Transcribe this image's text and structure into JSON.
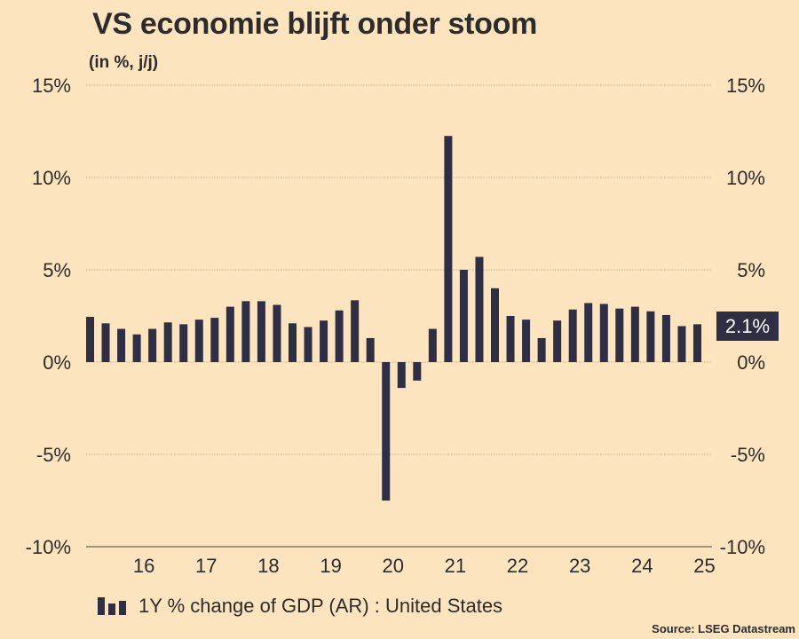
{
  "chart_data": {
    "type": "bar",
    "title": "VS economie blijft onder stoom",
    "subtitle": "(in %, j/j)",
    "xlabel": "",
    "ylabel": "",
    "ylim": [
      -10,
      15
    ],
    "yticks": [
      15,
      10,
      5,
      0,
      -5,
      -10
    ],
    "ytick_labels": [
      "15%",
      "10%",
      "5%",
      "0%",
      "-5%",
      "-10%"
    ],
    "xtick_labels": [
      "16",
      "17",
      "18",
      "19",
      "20",
      "21",
      "22",
      "23",
      "24",
      "25"
    ],
    "grid": true,
    "categories": [
      "2015Q2",
      "2015Q3",
      "2015Q4",
      "2016Q1",
      "2016Q2",
      "2016Q3",
      "2016Q4",
      "2017Q1",
      "2017Q2",
      "2017Q3",
      "2017Q4",
      "2018Q1",
      "2018Q2",
      "2018Q3",
      "2018Q4",
      "2019Q1",
      "2019Q2",
      "2019Q3",
      "2019Q4",
      "2020Q1",
      "2020Q2",
      "2020Q3",
      "2020Q4",
      "2021Q1",
      "2021Q2",
      "2021Q3",
      "2021Q4",
      "2022Q1",
      "2022Q2",
      "2022Q3",
      "2022Q4",
      "2023Q1",
      "2023Q2",
      "2023Q3",
      "2023Q4",
      "2024Q1",
      "2024Q2",
      "2024Q3",
      "2024Q4",
      "2025Q1"
    ],
    "series": [
      {
        "name": "1Y % change of GDP (AR) : United States",
        "color": "#2e2f45",
        "values": [
          2.45,
          2.1,
          1.8,
          1.5,
          1.8,
          2.15,
          2.05,
          2.3,
          2.4,
          3.0,
          3.3,
          3.3,
          3.1,
          2.1,
          1.9,
          2.25,
          2.8,
          3.35,
          1.3,
          -7.5,
          -1.4,
          -1.0,
          1.8,
          12.25,
          5.0,
          5.7,
          4.0,
          2.5,
          2.3,
          1.3,
          2.25,
          2.85,
          3.2,
          3.15,
          2.9,
          3.0,
          2.75,
          2.55,
          1.95,
          2.05
        ]
      }
    ],
    "last_value_label": "2.1%",
    "legend": "bottom-left",
    "source": "Source: LSEG Datastream"
  },
  "colors": {
    "background": "#fce4bf",
    "bar": "#2e2f45",
    "text": "#2e2b2b"
  }
}
